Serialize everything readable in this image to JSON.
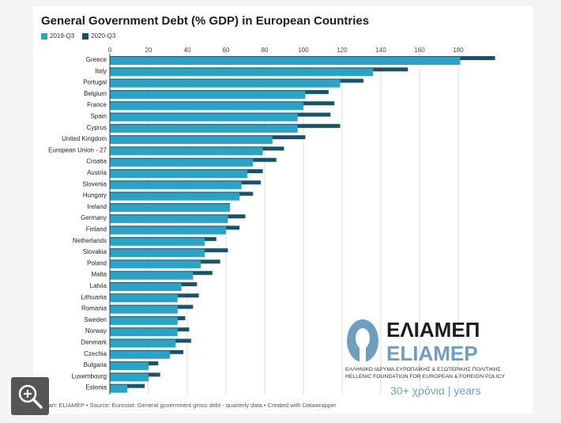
{
  "title": "General Government Debt (% GDP) in European Countries",
  "legend": [
    {
      "label": "2019-Q3",
      "color": "#2ba3c7"
    },
    {
      "label": "2020-Q3",
      "color": "#17536a"
    }
  ],
  "footer": "Chart: ELIAMEP • Source: Eurostat: General government gross debt - quarterly data • Created with Datawrapper",
  "logo": {
    "greek": "ΕΛΙΑΜΕΠ",
    "latin": "ELIAMEP",
    "tagline_gr": "ΕΛΛΗΝΙΚΟ ΙΔΡΥΜΑ ΕΥΡΩΠΑΪΚΗΣ & ΕΞΩΤΕΡΙΚΗΣ ΠΟΛΙΤΙΚΗΣ",
    "tagline_en": "HELLENIC FOUNDATION FOR EUROPEAN & FOREIGN POLICY",
    "years": "30+ χρόνια | years"
  },
  "chart_data": {
    "type": "bar",
    "orientation": "horizontal",
    "xlim": [
      0,
      200
    ],
    "ticks": [
      0,
      20,
      40,
      60,
      80,
      100,
      120,
      140,
      160,
      180
    ],
    "grid": true,
    "legend_position": "top-left",
    "categories": [
      "Greece",
      "Italy",
      "Portugal",
      "Belgium",
      "France",
      "Spain",
      "Cyprus",
      "United Kingdom",
      "European Union - 27",
      "Croatia",
      "Austria",
      "Slovenia",
      "Hungary",
      "Ireland",
      "Germany",
      "Finland",
      "Netherlands",
      "Slovakia",
      "Poland",
      "Malta",
      "Latvia",
      "Lithuania",
      "Romania",
      "Sweden",
      "Norway",
      "Denmark",
      "Czechia",
      "Bulgaria",
      "Luxembourg",
      "Estonia"
    ],
    "series": [
      {
        "name": "2019-Q3",
        "color": "#2ba3c7",
        "values": [
          181,
          136,
          119,
          101,
          100,
          97,
          97,
          84,
          79,
          74,
          71,
          68,
          67,
          62,
          61,
          60,
          49,
          49,
          47,
          43,
          37,
          35,
          35,
          35,
          35,
          34,
          31,
          20,
          20,
          9
        ]
      },
      {
        "name": "2020-Q3",
        "color": "#17536a",
        "values": [
          199,
          154,
          131,
          113,
          116,
          114,
          119,
          101,
          90,
          86,
          79,
          78,
          74,
          62,
          70,
          67,
          55,
          61,
          57,
          53,
          45,
          46,
          43,
          39,
          41,
          42,
          38,
          25,
          26,
          18
        ]
      }
    ]
  }
}
